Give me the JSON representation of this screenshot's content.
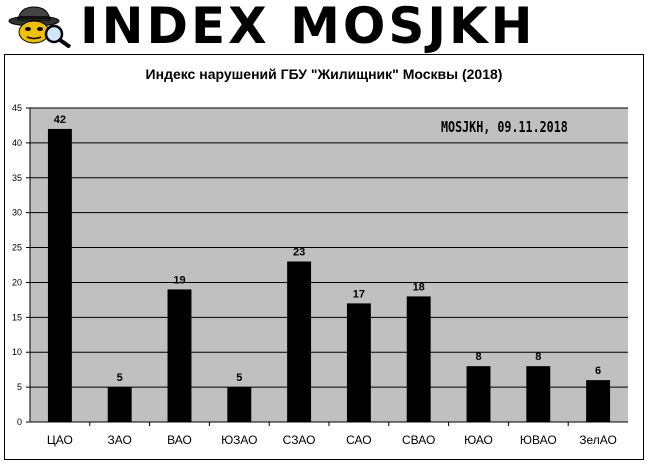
{
  "banner": {
    "text": "INDEX MOSJKH",
    "logo_icon": "spy-detective-icon"
  },
  "watermark": "MOSJKH, 09.11.2018",
  "chart_data": {
    "type": "bar",
    "title": "Индекс нарушений ГБУ \"Жилищник\" Москвы (2018)",
    "xlabel": "",
    "ylabel": "",
    "categories": [
      "ЦАО",
      "ЗАО",
      "ВАО",
      "ЮЗАО",
      "СЗАО",
      "САО",
      "СВАО",
      "ЮАО",
      "ЮВАО",
      "ЗелАО"
    ],
    "values": [
      42,
      5,
      19,
      5,
      23,
      17,
      18,
      8,
      8,
      6
    ],
    "ylim": [
      0,
      45
    ],
    "yticks": [
      0,
      5,
      10,
      15,
      20,
      25,
      30,
      35,
      40,
      45
    ],
    "grid": true,
    "legend": "none",
    "colors": {
      "bar": "#000000",
      "plot_background": "#c0c0c0",
      "grid": "#000000"
    }
  }
}
